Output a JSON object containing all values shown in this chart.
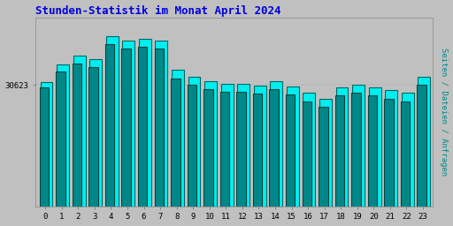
{
  "title": "Stunden-Statistik im Monat April 2024",
  "title_color": "#0000dd",
  "ylabel": "Seiten / Dateien / Anfragen",
  "ylabel_color": "#008888",
  "background_color": "#c0c0c0",
  "plot_bg_color": "#c0c0c0",
  "ytick_label": "30623",
  "hours": [
    0,
    1,
    2,
    3,
    4,
    5,
    6,
    7,
    8,
    9,
    10,
    11,
    12,
    13,
    14,
    15,
    16,
    17,
    18,
    19,
    20,
    21,
    22,
    23
  ],
  "values1": [
    920,
    1050,
    1120,
    1090,
    1260,
    1230,
    1240,
    1230,
    1010,
    960,
    930,
    910,
    910,
    895,
    930,
    890,
    840,
    800,
    880,
    900,
    880,
    860,
    840,
    960
  ],
  "values2": [
    880,
    1000,
    1060,
    1030,
    1200,
    1170,
    1180,
    1170,
    950,
    900,
    870,
    850,
    850,
    835,
    870,
    830,
    780,
    740,
    820,
    840,
    820,
    800,
    780,
    900
  ],
  "bar1_face": "#00eeee",
  "bar1_edge": "#006666",
  "bar2_face": "#008888",
  "bar2_edge": "#004444",
  "ymin": 0,
  "ymax": 1400,
  "ytick_val": 900,
  "xlim_min": -0.6,
  "xlim_max": 23.6
}
